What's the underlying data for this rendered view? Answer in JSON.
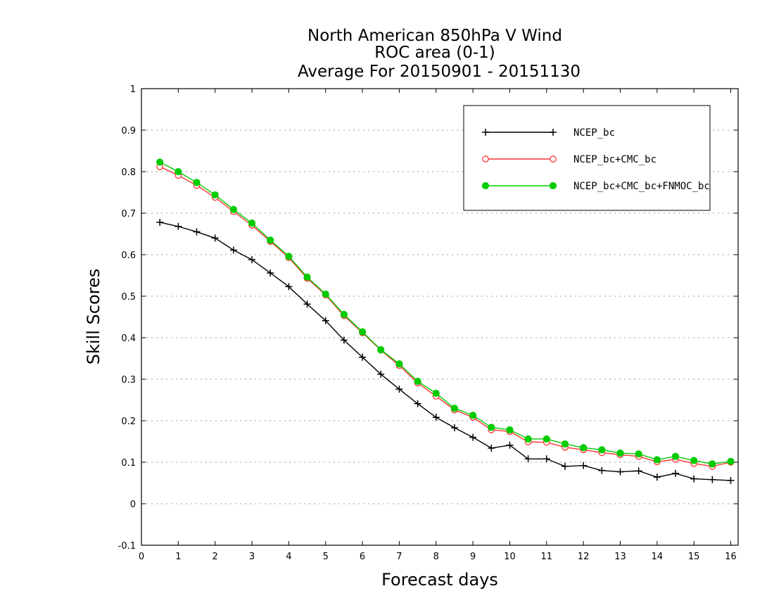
{
  "chart_data": {
    "type": "line",
    "title": [
      "North American 850hPa V Wind",
      "ROC area (0-1)",
      "Average For 20150901 - 20151130"
    ],
    "xlabel": "Forecast days",
    "ylabel": "Skill Scores",
    "xlim": [
      0,
      16.2
    ],
    "ylim": [
      -0.1,
      1
    ],
    "xticks": [
      0,
      1,
      2,
      3,
      4,
      5,
      6,
      7,
      8,
      9,
      10,
      11,
      12,
      13,
      14,
      15,
      16
    ],
    "yticks": [
      -0.1,
      0,
      0.1,
      0.2,
      0.3,
      0.4,
      0.5,
      0.6,
      0.7,
      0.8,
      0.9,
      1
    ],
    "ytick_labels": [
      "-0.1",
      "0",
      "0.1",
      "0.2",
      "0.3",
      "0.4",
      "0.5",
      "0.6",
      "0.7",
      "0.8",
      "0.9",
      "1"
    ],
    "grid": "horizontal dotted",
    "legend_position": "top-right",
    "x": [
      0.5,
      1,
      1.5,
      2,
      2.5,
      3,
      3.5,
      4,
      4.5,
      5,
      5.5,
      6,
      6.5,
      7,
      7.5,
      8,
      8.5,
      9,
      9.5,
      10,
      10.5,
      11,
      11.5,
      12,
      12.5,
      13,
      13.5,
      14,
      14.5,
      15,
      15.5,
      16
    ],
    "series": [
      {
        "name": "NCEP_bc",
        "color": "#000000",
        "marker": "plus",
        "values": [
          0.678,
          0.668,
          0.655,
          0.64,
          0.611,
          0.588,
          0.556,
          0.523,
          0.481,
          0.441,
          0.394,
          0.353,
          0.312,
          0.276,
          0.241,
          0.208,
          0.183,
          0.16,
          0.134,
          0.141,
          0.108,
          0.108,
          0.09,
          0.092,
          0.08,
          0.077,
          0.079,
          0.064,
          0.073,
          0.06,
          0.058,
          0.056
        ]
      },
      {
        "name": "NCEP_bc+CMC_bc",
        "color": "#ff3333",
        "marker": "circle-open",
        "values": [
          0.812,
          0.791,
          0.767,
          0.738,
          0.704,
          0.671,
          0.632,
          0.593,
          0.543,
          0.503,
          0.453,
          0.412,
          0.37,
          0.333,
          0.291,
          0.259,
          0.226,
          0.208,
          0.178,
          0.174,
          0.149,
          0.148,
          0.136,
          0.13,
          0.123,
          0.118,
          0.114,
          0.101,
          0.107,
          0.097,
          0.09,
          0.1
        ]
      },
      {
        "name": "NCEP_bc+CMC_bc+FNMOC_bc",
        "color": "#00cc00",
        "marker": "circle-filled",
        "values": [
          0.823,
          0.8,
          0.774,
          0.744,
          0.709,
          0.676,
          0.635,
          0.596,
          0.546,
          0.505,
          0.456,
          0.414,
          0.371,
          0.337,
          0.295,
          0.266,
          0.23,
          0.213,
          0.184,
          0.178,
          0.156,
          0.156,
          0.144,
          0.135,
          0.13,
          0.122,
          0.12,
          0.106,
          0.114,
          0.104,
          0.096,
          0.102
        ]
      }
    ]
  }
}
